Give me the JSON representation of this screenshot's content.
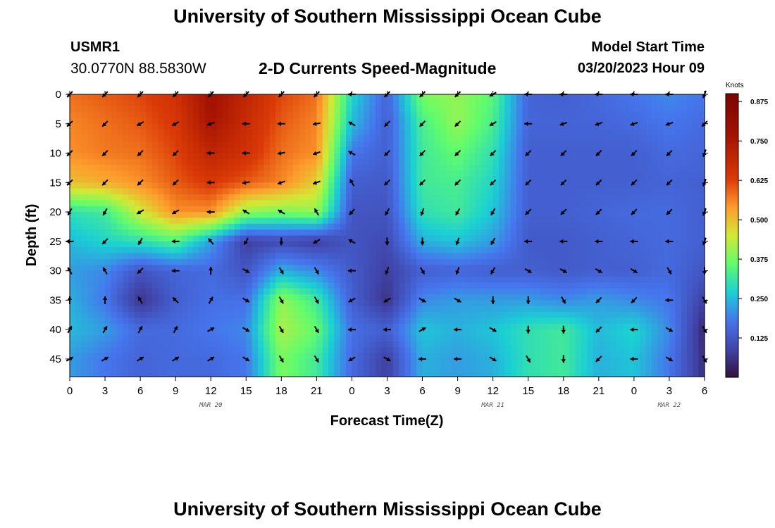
{
  "header": {
    "title": "University of Southern Mississippi Ocean Cube",
    "station": "USMR1",
    "coords": "30.0770N  88.5830W",
    "subtitle": "2-D Currents Speed-Magnitude",
    "model_start_label": "Model Start Time",
    "model_start_value": "03/20/2023 Hour 09"
  },
  "footer": {
    "title": "University of Southern Mississippi Ocean Cube"
  },
  "chart_data": {
    "type": "heatmap",
    "title": "2-D Currents Speed-Magnitude",
    "xlabel": "Forecast Time(Z)",
    "ylabel": "Depth (ft)",
    "x_tick_labels": [
      "0",
      "3",
      "6",
      "9",
      "12",
      "15",
      "18",
      "21",
      "0",
      "3",
      "6",
      "9",
      "12",
      "15",
      "18",
      "21",
      "0",
      "3",
      "6"
    ],
    "x_hours": [
      0,
      3,
      6,
      9,
      12,
      15,
      18,
      21,
      24,
      27,
      30,
      33,
      36,
      39,
      42,
      45,
      48,
      51,
      54
    ],
    "day_labels": [
      {
        "text": "MAR 20",
        "hour": 12
      },
      {
        "text": "MAR 21",
        "hour": 36
      },
      {
        "text": "MAR 22",
        "hour": 51
      }
    ],
    "y_ticks": [
      0,
      5,
      10,
      15,
      20,
      25,
      30,
      35,
      40,
      45
    ],
    "ylim": [
      0,
      48
    ],
    "y_inverted": true,
    "colorbar": {
      "label": "Knots",
      "range": [
        0,
        0.9
      ],
      "ticks": [
        "0.875",
        "0.750",
        "0.625",
        "0.500",
        "0.375",
        "0.250",
        "0.125"
      ],
      "tick_values": [
        0.875,
        0.75,
        0.625,
        0.5,
        0.375,
        0.25,
        0.125
      ]
    },
    "depths": [
      0,
      5,
      10,
      15,
      20,
      25,
      30,
      35,
      40,
      45
    ],
    "times": [
      0,
      3,
      6,
      9,
      12,
      15,
      18,
      21,
      24,
      27,
      30,
      33,
      36,
      39,
      42,
      45,
      48,
      51,
      54
    ],
    "speed_knots": [
      [
        0.58,
        0.6,
        0.62,
        0.66,
        0.78,
        0.7,
        0.62,
        0.58,
        0.28,
        0.15,
        0.38,
        0.4,
        0.35,
        0.15,
        0.14,
        0.16,
        0.18,
        0.2,
        0.18
      ],
      [
        0.56,
        0.58,
        0.6,
        0.64,
        0.76,
        0.68,
        0.6,
        0.56,
        0.25,
        0.14,
        0.33,
        0.4,
        0.33,
        0.15,
        0.15,
        0.15,
        0.16,
        0.18,
        0.16
      ],
      [
        0.55,
        0.57,
        0.58,
        0.62,
        0.7,
        0.66,
        0.58,
        0.55,
        0.18,
        0.14,
        0.32,
        0.36,
        0.3,
        0.14,
        0.14,
        0.14,
        0.14,
        0.16,
        0.15
      ],
      [
        0.5,
        0.52,
        0.55,
        0.6,
        0.64,
        0.6,
        0.56,
        0.48,
        0.14,
        0.13,
        0.32,
        0.33,
        0.28,
        0.14,
        0.14,
        0.14,
        0.14,
        0.15,
        0.14
      ],
      [
        0.3,
        0.32,
        0.45,
        0.55,
        0.55,
        0.4,
        0.38,
        0.4,
        0.12,
        0.12,
        0.3,
        0.32,
        0.26,
        0.14,
        0.14,
        0.15,
        0.16,
        0.16,
        0.14
      ],
      [
        0.25,
        0.28,
        0.3,
        0.34,
        0.22,
        0.08,
        0.1,
        0.08,
        0.12,
        0.1,
        0.24,
        0.26,
        0.22,
        0.13,
        0.13,
        0.14,
        0.15,
        0.16,
        0.14
      ],
      [
        0.22,
        0.2,
        0.12,
        0.15,
        0.16,
        0.12,
        0.24,
        0.2,
        0.13,
        0.08,
        0.14,
        0.15,
        0.14,
        0.14,
        0.13,
        0.14,
        0.14,
        0.16,
        0.12
      ],
      [
        0.24,
        0.18,
        0.06,
        0.14,
        0.17,
        0.17,
        0.4,
        0.32,
        0.14,
        0.06,
        0.2,
        0.22,
        0.22,
        0.22,
        0.2,
        0.22,
        0.2,
        0.18,
        0.08
      ],
      [
        0.25,
        0.22,
        0.16,
        0.16,
        0.18,
        0.2,
        0.42,
        0.36,
        0.17,
        0.14,
        0.26,
        0.24,
        0.26,
        0.3,
        0.32,
        0.25,
        0.28,
        0.2,
        0.04
      ],
      [
        0.22,
        0.18,
        0.15,
        0.16,
        0.16,
        0.18,
        0.38,
        0.32,
        0.16,
        0.08,
        0.24,
        0.22,
        0.24,
        0.3,
        0.32,
        0.24,
        0.26,
        0.18,
        0.05
      ]
    ],
    "vector_direction_deg": [
      [
        225,
        225,
        225,
        225,
        225,
        225,
        225,
        225,
        270,
        225,
        225,
        225,
        240,
        270,
        270,
        270,
        270,
        270,
        200
      ],
      [
        225,
        225,
        240,
        240,
        250,
        270,
        270,
        260,
        300,
        225,
        225,
        225,
        240,
        270,
        250,
        250,
        250,
        250,
        225
      ],
      [
        225,
        225,
        225,
        225,
        270,
        270,
        260,
        250,
        300,
        225,
        225,
        225,
        225,
        225,
        225,
        225,
        225,
        225,
        200
      ],
      [
        225,
        225,
        225,
        225,
        270,
        260,
        250,
        250,
        330,
        225,
        225,
        225,
        225,
        225,
        225,
        225,
        225,
        225,
        200
      ],
      [
        210,
        210,
        240,
        240,
        270,
        300,
        300,
        330,
        220,
        210,
        200,
        210,
        210,
        225,
        225,
        225,
        225,
        225,
        200
      ],
      [
        270,
        225,
        210,
        270,
        320,
        210,
        180,
        240,
        300,
        180,
        180,
        200,
        210,
        270,
        270,
        270,
        270,
        270,
        200
      ],
      [
        330,
        330,
        225,
        270,
        0,
        120,
        150,
        150,
        270,
        200,
        150,
        200,
        210,
        120,
        120,
        120,
        120,
        150,
        180
      ],
      [
        0,
        0,
        330,
        315,
        30,
        120,
        150,
        150,
        240,
        240,
        120,
        120,
        180,
        180,
        150,
        225,
        225,
        270,
        150
      ],
      [
        30,
        30,
        30,
        30,
        60,
        120,
        150,
        150,
        270,
        270,
        60,
        270,
        120,
        180,
        180,
        225,
        270,
        120,
        150
      ],
      [
        60,
        60,
        60,
        60,
        60,
        120,
        150,
        150,
        240,
        120,
        270,
        270,
        120,
        150,
        180,
        225,
        270,
        120,
        150
      ]
    ]
  }
}
